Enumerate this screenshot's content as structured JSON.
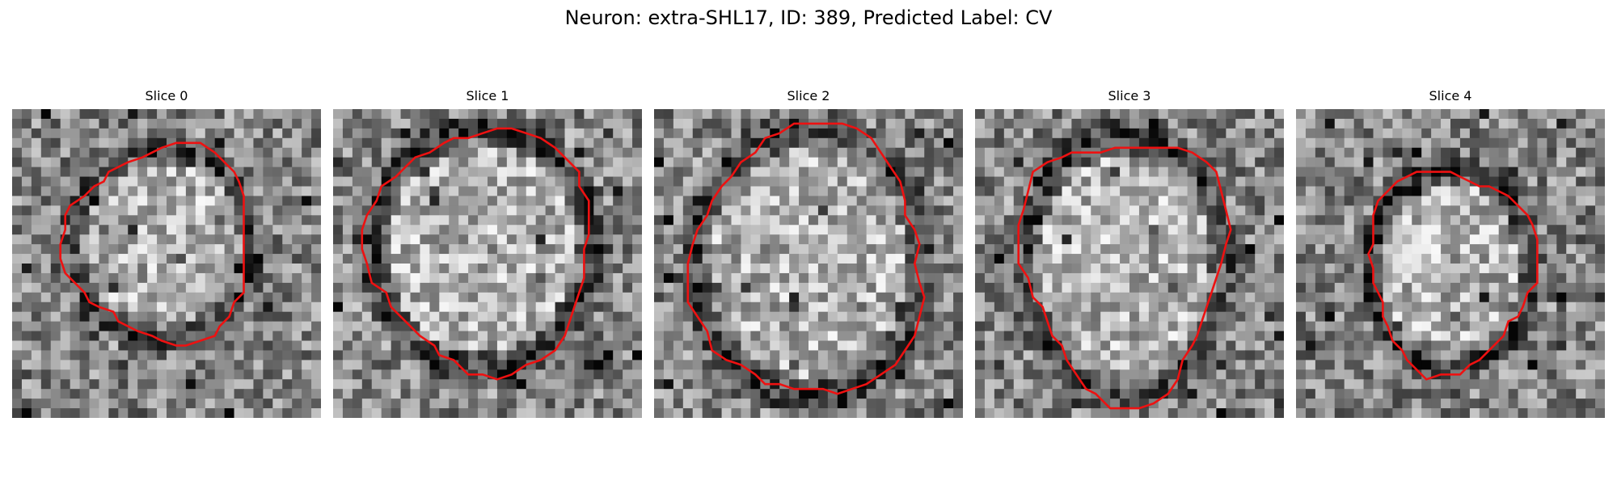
{
  "figure": {
    "title": "Neuron: extra-SHL17, ID: 389, Predicted Label: CV"
  },
  "colors": {
    "contour": "#ee1111",
    "background": "#ffffff"
  },
  "panels": [
    {
      "title": "Slice 0"
    },
    {
      "title": "Slice 1"
    },
    {
      "title": "Slice 2"
    },
    {
      "title": "Slice 3"
    },
    {
      "title": "Slice 4"
    }
  ]
}
